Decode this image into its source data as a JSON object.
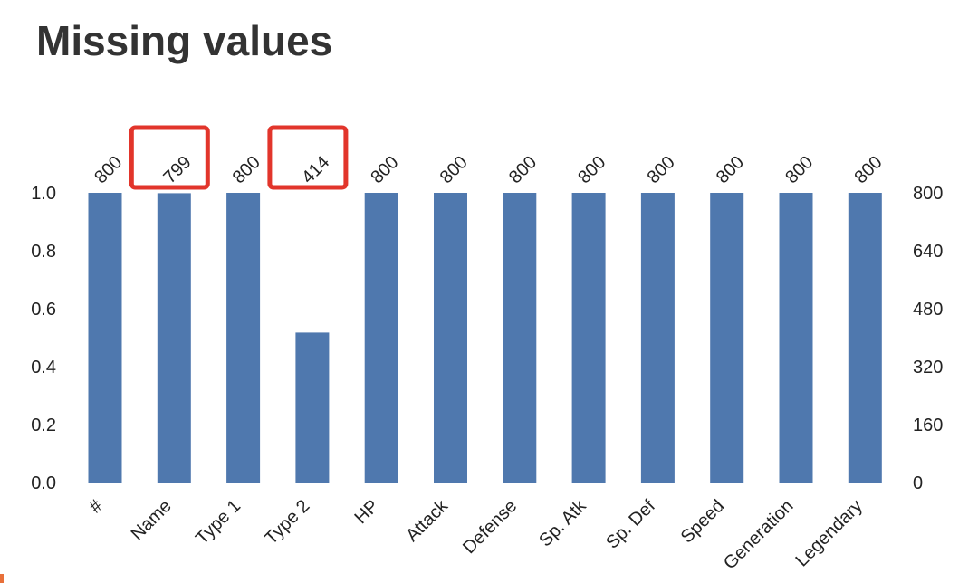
{
  "title": "Missing values",
  "chart_data": {
    "type": "bar",
    "title": "Missing values",
    "categories": [
      "#",
      "Name",
      "Type 1",
      "Type 2",
      "HP",
      "Attack",
      "Defense",
      "Sp. Atk",
      "Sp. Def",
      "Speed",
      "Generation",
      "Legendary"
    ],
    "values": [
      800,
      799,
      800,
      414,
      800,
      800,
      800,
      800,
      800,
      800,
      800,
      800
    ],
    "total": 800,
    "ylim_left": [
      0,
      1
    ],
    "yticks_left": [
      "0.0",
      "0.2",
      "0.4",
      "0.6",
      "0.8",
      "1.0"
    ],
    "ylim_right": [
      0,
      800
    ],
    "yticks_right": [
      "0",
      "160",
      "320",
      "480",
      "640",
      "800"
    ],
    "grid": false,
    "bar_color": "#4f78ae",
    "highlight_color": "#e2352b",
    "highlighted": [
      "Name",
      "Type 2"
    ]
  },
  "corner_mark_color": "#e8703a"
}
